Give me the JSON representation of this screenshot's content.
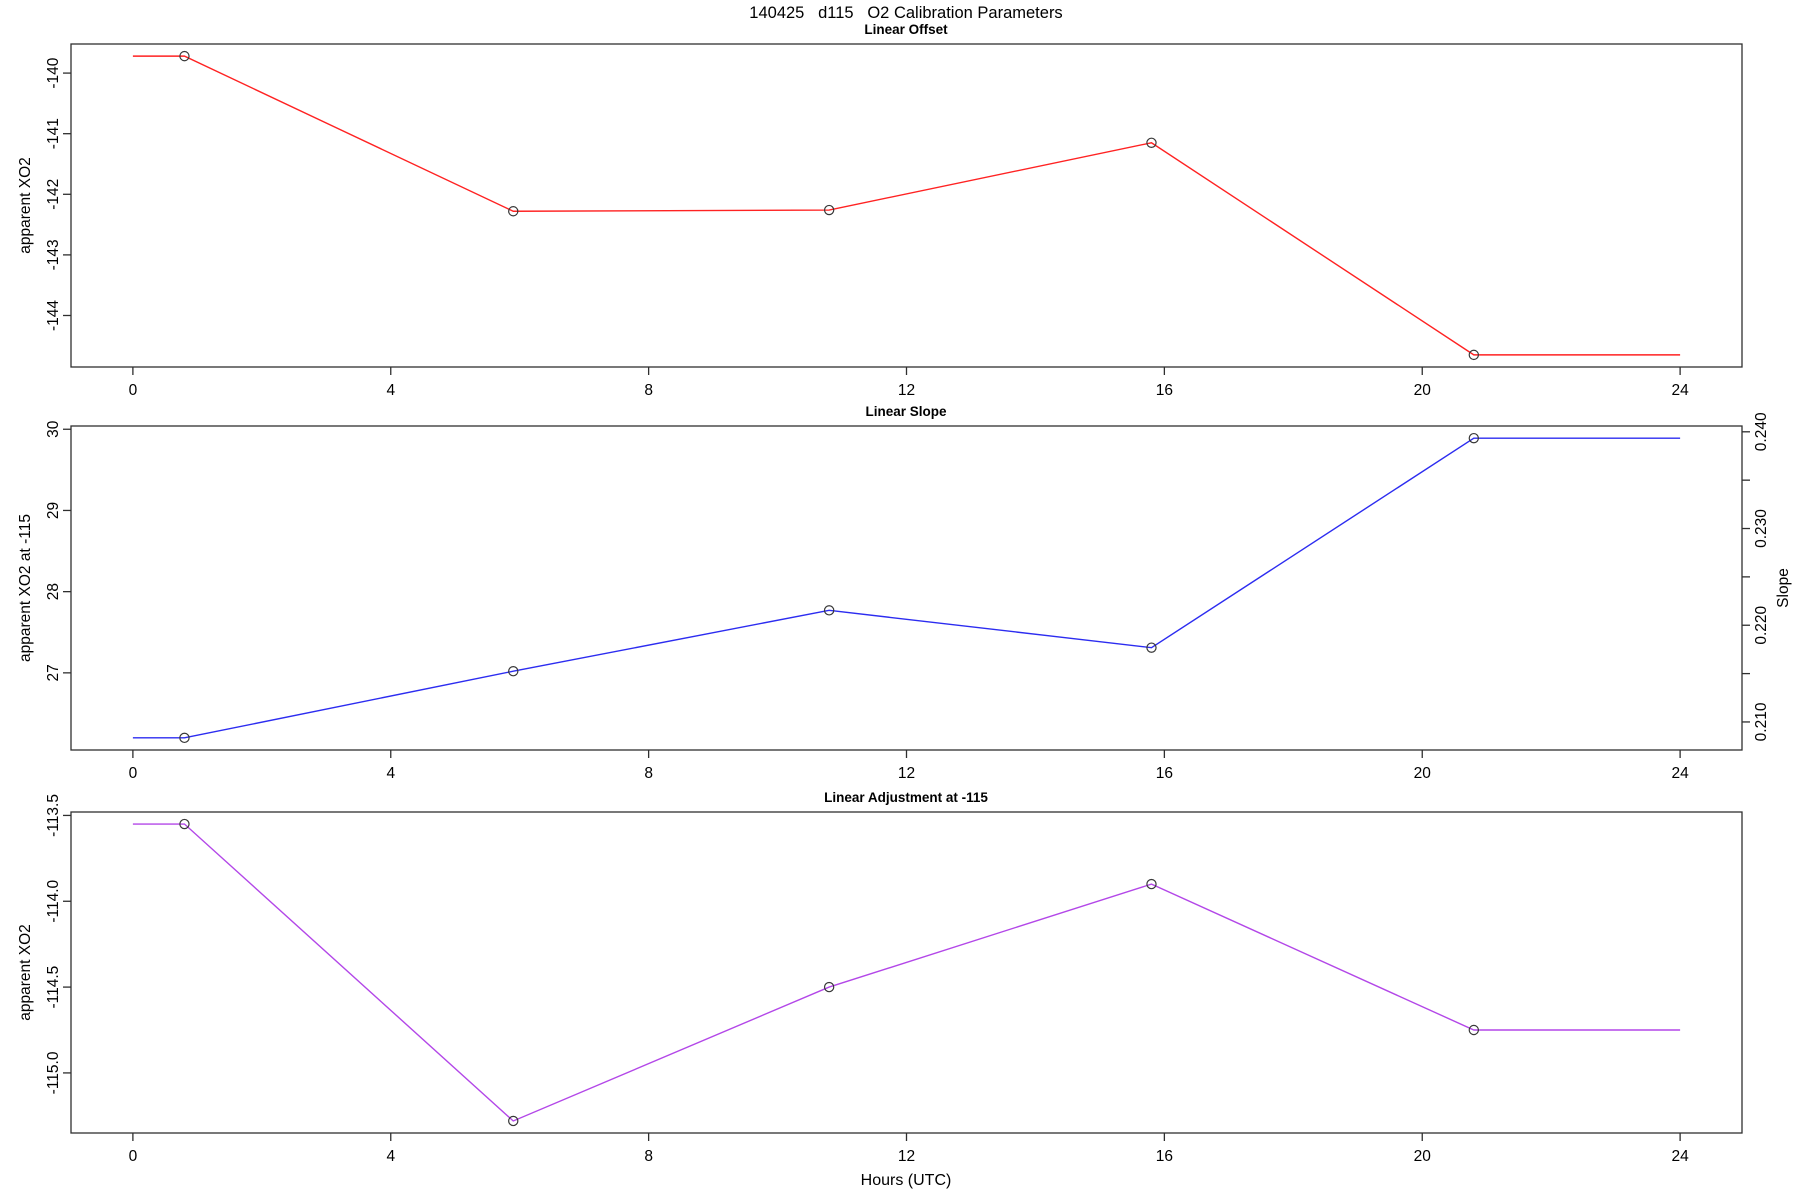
{
  "figure": {
    "title": "140425   d115   O2 Calibration Parameters",
    "xlim": [
      -0.96,
      24.96
    ],
    "box_color": "#2f2f2f",
    "marker_color": "#383838"
  },
  "chart_data": [
    {
      "type": "line",
      "title": "Linear Offset",
      "ylabel": "apparent XO2",
      "color": "#ff2222",
      "x": [
        0.8,
        5.9,
        10.8,
        15.8,
        20.8
      ],
      "y": [
        -139.72,
        -142.28,
        -142.26,
        -141.15,
        -144.65
      ],
      "line_extends_x": [
        0,
        24
      ],
      "ylim": [
        -144.85,
        -139.52
      ],
      "xticks": [
        0,
        4,
        8,
        12,
        16,
        20,
        24
      ],
      "xtick_labels": [
        "0",
        "4",
        "8",
        "12",
        "16",
        "20",
        "24"
      ],
      "yticks": [
        -140,
        -141,
        -142,
        -143,
        -144
      ],
      "ytick_labels": [
        "-140",
        "-141",
        "-142",
        "-143",
        "-144"
      ],
      "grid": "off",
      "markers": "open-circle"
    },
    {
      "type": "line",
      "title": "Linear Slope",
      "ylabel": "apparent XO2 at -115",
      "y2label": "Slope",
      "color": "#2c2cf0",
      "x": [
        0.8,
        5.9,
        10.8,
        15.8,
        20.8
      ],
      "y": [
        26.2,
        27.02,
        27.77,
        27.31,
        29.89
      ],
      "y2_equivalent_slope": [
        0.208,
        0.215,
        0.221,
        0.217,
        0.239
      ],
      "line_extends_x": [
        0,
        24
      ],
      "ylim": [
        26.05,
        30.04
      ],
      "xticks": [
        0,
        4,
        8,
        12,
        16,
        20,
        24
      ],
      "xtick_labels": [
        "0",
        "4",
        "8",
        "12",
        "16",
        "20",
        "24"
      ],
      "yticks": [
        27,
        28,
        29,
        30
      ],
      "ytick_labels": [
        "27",
        "28",
        "29",
        "30"
      ],
      "y2lim": [
        0.2071,
        0.2406
      ],
      "y2ticks": [
        0.21,
        0.215,
        0.22,
        0.225,
        0.23,
        0.235,
        0.24
      ],
      "y2tick_labels": [
        "0.210",
        "",
        "0.220",
        "",
        "0.230",
        "",
        "0.240"
      ],
      "grid": "off",
      "markers": "open-circle"
    },
    {
      "type": "line",
      "title": "Linear Adjustment at -115",
      "ylabel": "apparent XO2",
      "xlabel": "Hours (UTC)",
      "color": "#b347e8",
      "x": [
        0.8,
        5.9,
        10.8,
        15.8,
        20.8
      ],
      "y": [
        -113.55,
        -115.28,
        -114.5,
        -113.9,
        -114.75
      ],
      "line_extends_x": [
        0,
        24
      ],
      "ylim": [
        -115.35,
        -113.48
      ],
      "xticks": [
        0,
        4,
        8,
        12,
        16,
        20,
        24
      ],
      "xtick_labels": [
        "0",
        "4",
        "8",
        "12",
        "16",
        "20",
        "24"
      ],
      "yticks": [
        -113.5,
        -114.0,
        -114.5,
        -115.0
      ],
      "ytick_labels": [
        "-113.5",
        "-114.0",
        "-114.5",
        "-115.0"
      ],
      "grid": "off",
      "markers": "open-circle"
    }
  ]
}
